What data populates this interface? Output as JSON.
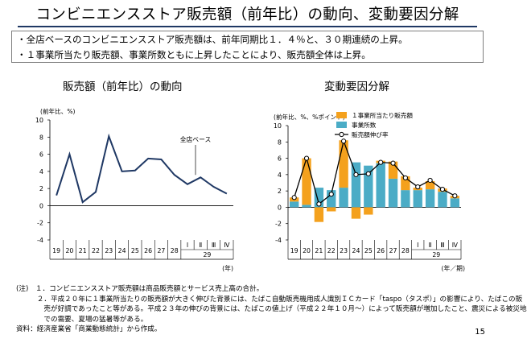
{
  "title": "コンビニエンスストア販売額（前年比）の動向、変動要因分解",
  "summary": [
    "・全店ベースのコンビニエンスストア販売額は、前年同期比１．４％と、３０期連続の上昇。",
    "・１事業所当たり販売額、事業所数ともに上昇したことにより、販売額全体は上昇。"
  ],
  "chart_data": [
    {
      "type": "line",
      "title": "販売額（前年比）の動向",
      "ylabel": "(前年比、%)",
      "xlabel": "(年)",
      "ylim": [
        -4,
        10
      ],
      "y_ticks": [
        -4,
        -2,
        0,
        2,
        4,
        6,
        8,
        10
      ],
      "categories": [
        "19",
        "20",
        "21",
        "22",
        "23",
        "24",
        "25",
        "26",
        "27",
        "28",
        "Ⅰ",
        "Ⅱ",
        "Ⅲ",
        "Ⅳ"
      ],
      "year_group": {
        "label": "29",
        "categories": [
          "Ⅰ",
          "Ⅱ",
          "Ⅲ",
          "Ⅳ"
        ]
      },
      "series": [
        {
          "name": "全店ベース",
          "values": [
            1.2,
            6.0,
            0.4,
            1.6,
            8.1,
            4.0,
            4.1,
            5.5,
            5.4,
            3.6,
            2.5,
            3.3,
            2.2,
            1.4
          ],
          "color": "#1f3864"
        }
      ],
      "annotation": "全店ベース"
    },
    {
      "type": "bar",
      "title": "変動要因分解",
      "ylabel": "(前年比、%、%ポイント)",
      "xlabel": "(年／期)",
      "ylim": [
        -4,
        10
      ],
      "y_ticks": [
        -4,
        -2,
        0,
        2,
        4,
        6,
        8,
        10
      ],
      "categories": [
        "19",
        "20",
        "21",
        "22",
        "23",
        "24",
        "25",
        "26",
        "27",
        "28",
        "Ⅰ",
        "Ⅱ",
        "Ⅲ",
        "Ⅳ"
      ],
      "year_group": {
        "label": "29",
        "categories": [
          "Ⅰ",
          "Ⅱ",
          "Ⅲ",
          "Ⅳ"
        ]
      },
      "series": [
        {
          "name": "１事業所当たり販売額",
          "type": "bar",
          "values": [
            0.5,
            5.7,
            -1.8,
            -0.5,
            5.8,
            -1.4,
            -0.9,
            0.3,
            2.1,
            1.7,
            0.3,
            1.0,
            0.4,
            0.3
          ],
          "color": "#f4a11d"
        },
        {
          "name": "事業所数",
          "type": "bar",
          "values": [
            0.7,
            0.3,
            2.4,
            2.1,
            2.4,
            5.5,
            5.1,
            5.4,
            3.5,
            2.1,
            2.1,
            2.2,
            1.9,
            1.1
          ],
          "color": "#4bacc6"
        },
        {
          "name": "販売額伸び率",
          "type": "line",
          "values": [
            1.2,
            6.0,
            0.4,
            1.6,
            8.1,
            4.0,
            4.1,
            5.5,
            5.4,
            3.6,
            2.5,
            3.3,
            2.2,
            1.4
          ],
          "color": "#000000"
        }
      ]
    }
  ],
  "notes": [
    "(注)　１．コンビニエンスストア販売額は商品販売額とサービス売上高の合計。",
    "　　　２．平成２０年に１事業所当たりの販売額が大きく伸びた背景には、たばこ自動販売機用成人識別ＩＣカード「taspo（タスポ）」の影響により、たばこの販",
    "　　　　売が好調であったこと等がある。平成２３年の伸びの背景には、たばこの値上げ（平成２２年１０月～）によって販売額が増加したこと、震災による被災地",
    "　　　　での需要、夏場の猛暑等がある。",
    "資料：経済産業省「商業動態統計」から作成。"
  ],
  "page_number": "15"
}
